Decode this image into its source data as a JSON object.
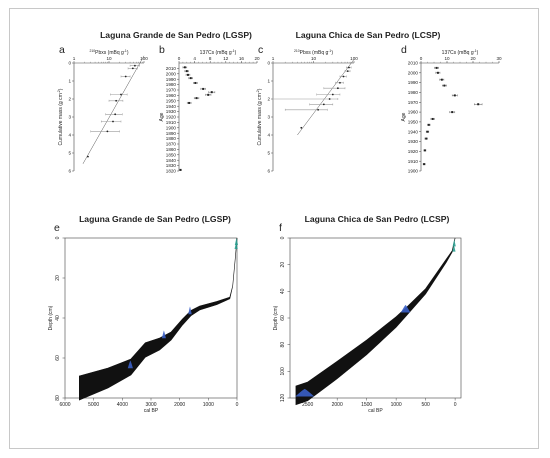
{
  "figure": {
    "colors": {
      "model": "#111111",
      "dates": "#3a5fc7",
      "top": "#2a9d8f",
      "point": "#222222",
      "err": "#9a9a9a"
    },
    "panel_titles": [
      {
        "text": "Laguna Grande de San Pedro (LGSP)"
      },
      {
        "text": "Laguna Chica de San Pedro (LCSP)"
      },
      {
        "text": "Laguna Grande de San Pedro (LGSP)"
      },
      {
        "text": "Laguna Chica de San Pedro (LCSP)"
      }
    ]
  },
  "chart_data": [
    {
      "id": "a",
      "label": "a",
      "type": "scatter",
      "xlabel_sup": "210",
      "xlabel_main": "Pbxs (mBq g",
      "xlabel_exp": "-1",
      "xlabel_end": ")",
      "ylabel": "Cumulative mass (g cm",
      "ylabel_exp": "-2",
      "ylabel_end": ")",
      "xscale": "log",
      "xlim": [
        1,
        100
      ],
      "ylim": [
        0,
        6
      ],
      "x_ticks": [
        1,
        10,
        100
      ],
      "y_ticks": [
        0,
        1,
        2,
        3,
        4,
        5,
        6
      ],
      "x": [
        55,
        48,
        30,
        22,
        16,
        15,
        13,
        9,
        2.5
      ],
      "y": [
        0.15,
        0.3,
        0.75,
        1.75,
        2.1,
        2.85,
        3.25,
        3.8,
        5.2
      ],
      "xerr": [
        [
          40,
          75
        ],
        [
          35,
          65
        ],
        [
          22,
          40
        ],
        [
          11,
          33
        ],
        [
          10,
          25
        ],
        [
          8,
          24
        ],
        [
          6,
          22
        ],
        [
          3,
          20
        ],
        [
          2.5,
          2.5
        ]
      ],
      "fit": [
        [
          100,
          -0.4
        ],
        [
          1.8,
          5.6
        ]
      ]
    },
    {
      "id": "b",
      "label": "b",
      "type": "scatter",
      "xlabel": "137Cs (mBq g",
      "xlabel_exp": "-1",
      "xlabel_end": ")",
      "ylabel": "Age",
      "xlim": [
        0,
        20
      ],
      "ylim": [
        1820,
        2020
      ],
      "x_ticks": [
        0,
        4,
        8,
        12,
        16,
        20
      ],
      "y_ticks": [
        1820,
        1830,
        1840,
        1850,
        1860,
        1870,
        1880,
        1890,
        1900,
        1910,
        1920,
        1930,
        1940,
        1950,
        1960,
        1970,
        1980,
        1990,
        2000,
        2010
      ],
      "x": [
        1.5,
        2.0,
        2.3,
        3.0,
        4.2,
        6.2,
        8.4,
        7.5,
        4.5,
        2.6,
        0.4
      ],
      "y": [
        2012,
        2005,
        1998,
        1992,
        1983,
        1972,
        1966,
        1961,
        1955,
        1946,
        1822
      ],
      "xerr": [
        0.5,
        0.5,
        0.5,
        0.5,
        0.5,
        0.6,
        0.8,
        0.7,
        0.6,
        0.5,
        0
      ]
    },
    {
      "id": "c",
      "label": "c",
      "type": "scatter",
      "xlabel_sup": "210",
      "xlabel_main": "Pbxs (mBq g",
      "xlabel_exp": "-1",
      "xlabel_end": ")",
      "ylabel": "Cumulative mass (g cm",
      "ylabel_exp": "-2",
      "ylabel_end": ")",
      "xscale": "log",
      "xlim": [
        1,
        100
      ],
      "ylim": [
        0,
        6
      ],
      "x_ticks": [
        1,
        10,
        100
      ],
      "y_ticks": [
        0,
        1,
        2,
        3,
        4,
        5,
        6
      ],
      "x": [
        75,
        70,
        55,
        45,
        40,
        30,
        25,
        18,
        13,
        5
      ],
      "y": [
        0.25,
        0.45,
        0.75,
        1.1,
        1.4,
        1.75,
        2.0,
        2.3,
        2.6,
        3.6
      ],
      "xerr": [
        [
          65,
          85
        ],
        [
          60,
          80
        ],
        [
          45,
          65
        ],
        [
          35,
          55
        ],
        [
          18,
          60
        ],
        [
          12,
          45
        ],
        [
          1,
          40
        ],
        [
          8,
          30
        ],
        [
          2,
          22
        ],
        [
          5,
          5
        ]
      ],
      "fit": [
        [
          100,
          -0.2
        ],
        [
          4,
          4.0
        ]
      ]
    },
    {
      "id": "d",
      "label": "d",
      "type": "scatter",
      "xlabel": "137Cs (mBq g",
      "xlabel_exp": "-1",
      "xlabel_end": ")",
      "ylabel": "Age",
      "xlim": [
        0,
        30
      ],
      "ylim": [
        1900,
        2010
      ],
      "x_ticks": [
        0,
        10,
        20,
        30
      ],
      "y_ticks": [
        1900,
        1910,
        1920,
        1930,
        1940,
        1950,
        1960,
        1970,
        1980,
        1990,
        2000,
        2010
      ],
      "x": [
        6,
        6.5,
        8,
        9,
        13,
        22,
        12,
        4.5,
        3,
        2.5,
        2,
        1.5,
        1.2
      ],
      "y": [
        2005,
        2000,
        1993,
        1987,
        1977,
        1968,
        1960,
        1953,
        1947,
        1940,
        1933,
        1921,
        1907
      ],
      "xerr": [
        0.8,
        0.8,
        0.8,
        0.8,
        1.0,
        1.5,
        1.0,
        0.7,
        0.5,
        0.5,
        0.5,
        0.4,
        0.4
      ]
    },
    {
      "id": "e",
      "label": "e",
      "type": "area",
      "xlabel": "cal BP",
      "ylabel": "Depth (cm)",
      "xlim": [
        6000,
        0
      ],
      "ylim": [
        80,
        0
      ],
      "x_ticks": [
        6000,
        5000,
        4000,
        3000,
        2000,
        1000,
        0
      ],
      "y_ticks": [
        0,
        20,
        40,
        60,
        80
      ],
      "median": [
        [
          0,
          0
        ],
        [
          60,
          10
        ],
        [
          150,
          24
        ],
        [
          250,
          30
        ],
        [
          700,
          32.5
        ],
        [
          1300,
          35
        ],
        [
          1600,
          37.5
        ],
        [
          1900,
          42
        ],
        [
          2300,
          49
        ],
        [
          2700,
          53
        ],
        [
          3200,
          56
        ],
        [
          3700,
          64.5
        ],
        [
          4500,
          70
        ],
        [
          5500,
          75
        ]
      ],
      "band_width": [
        0,
        0,
        0,
        0.4,
        0.8,
        1.0,
        1.3,
        1.5,
        2.0,
        3.0,
        3.6,
        4.0,
        5.0,
        6.0
      ],
      "dates": [
        {
          "age": 1640,
          "depth": 37.5,
          "spread": 60
        },
        {
          "age": 2550,
          "depth": 49.5,
          "spread": 70
        },
        {
          "age": 3720,
          "depth": 64.5,
          "spread": 90
        }
      ],
      "top_dates": [
        {
          "age": 30,
          "depth": 4
        },
        {
          "age": 20,
          "depth": 2
        }
      ]
    },
    {
      "id": "f",
      "label": "f",
      "type": "area",
      "xlabel": "cal BP",
      "ylabel": "Depth (cm)",
      "xlim": [
        2800,
        -100
      ],
      "ylim": [
        120,
        0
      ],
      "x_ticks": [
        2500,
        2000,
        1500,
        1000,
        500,
        0
      ],
      "y_ticks": [
        0,
        20,
        40,
        60,
        80,
        100,
        120
      ],
      "median": [
        [
          0,
          0
        ],
        [
          50,
          10
        ],
        [
          150,
          17
        ],
        [
          500,
          40
        ],
        [
          800,
          54
        ],
        [
          1000,
          63
        ],
        [
          1500,
          82
        ],
        [
          2000,
          99
        ],
        [
          2500,
          115
        ],
        [
          2700,
          118
        ]
      ],
      "band_width": [
        0,
        0.5,
        1.2,
        2.0,
        3.0,
        4.0,
        5.5,
        6.5,
        7.0,
        7.0
      ],
      "dates": [
        {
          "age": 840,
          "depth": 55,
          "spread": 80
        },
        {
          "age": 2550,
          "depth": 118,
          "spread": 160
        }
      ],
      "top_dates": [
        {
          "age": 20,
          "depth": 8
        },
        {
          "age": 15,
          "depth": 4
        }
      ]
    }
  ]
}
